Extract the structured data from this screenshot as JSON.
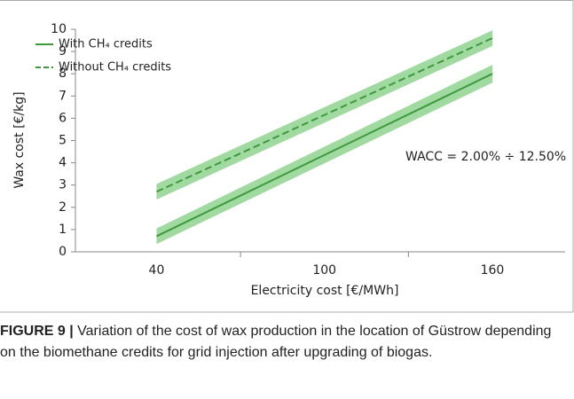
{
  "chart_data": {
    "type": "line",
    "x": [
      40,
      160
    ],
    "series": [
      {
        "name": "With CH₄ credits",
        "color": "#3c9a3c",
        "band_color": "#8fd48f",
        "dash": false,
        "values": [
          0.7,
          8.0
        ],
        "band_lower": [
          0.35,
          7.6
        ],
        "band_upper": [
          1.05,
          8.4
        ]
      },
      {
        "name": "Without CH₄ credits",
        "color": "#3c9a3c",
        "band_color": "#8fd48f",
        "dash": true,
        "values": [
          2.7,
          9.6
        ],
        "band_lower": [
          2.35,
          9.25
        ],
        "band_upper": [
          3.05,
          9.95
        ]
      }
    ],
    "xlim": [
      11,
      186
    ],
    "xticks": [
      40,
      100,
      160
    ],
    "xminor_ticks": [
      70,
      130
    ],
    "ylim": [
      0,
      10
    ],
    "yticks": [
      0,
      1,
      2,
      3,
      4,
      5,
      6,
      7,
      8,
      9,
      10
    ],
    "xlabel": "Electricity cost [€/MWh]",
    "ylabel": "Wax cost [€/kg]",
    "annotation": "WACC = 2.00% ÷ 12.50%",
    "legend": "top-left",
    "grid": false
  },
  "caption": {
    "label": "FIGURE 9 |",
    "text": "Variation of the cost of wax production in the location of Güstrow depending on the biomethane credits for grid injection after upgrading of biogas."
  }
}
